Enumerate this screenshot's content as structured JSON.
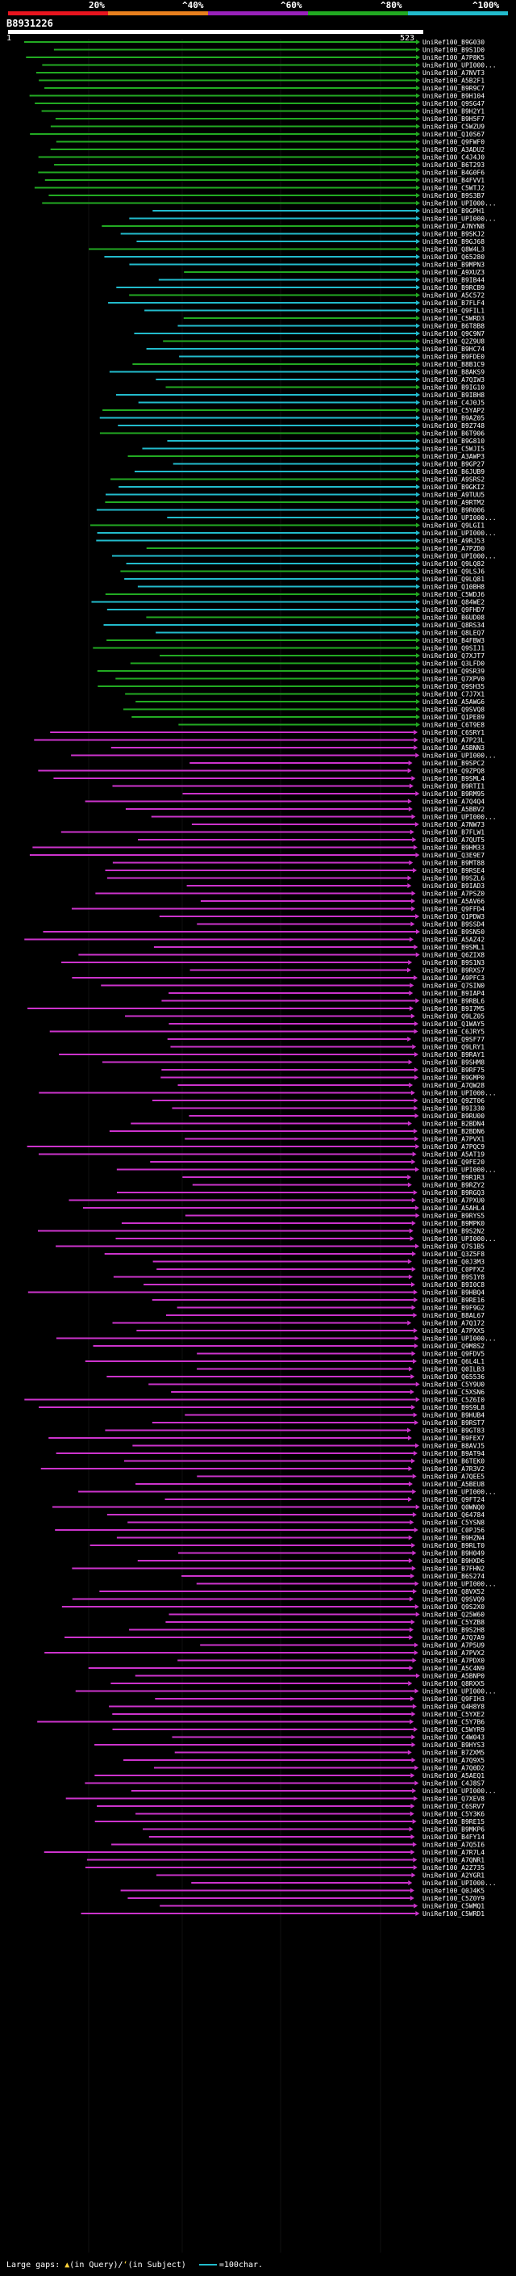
{
  "header": {
    "query_id": "B8931226",
    "query_start": "1",
    "query_end": "523",
    "scale_labels": [
      "20%",
      "^40%",
      "^60%",
      "^80%",
      "^100%"
    ],
    "scale_colors": [
      "#e8141e",
      "#e8801e",
      "#9922bb",
      "#22aa22",
      "#22bbcc"
    ]
  },
  "colors": {
    "magenta": "#cc33cc",
    "green": "#22aa22",
    "cyan": "#22bbcc",
    "background": "#000000",
    "grid": "#111111"
  },
  "footer": {
    "large_gaps_label": "Large gaps:",
    "in_query": "(in Query)",
    "separator": "/",
    "in_subject": "(in Subject)",
    "scale_label": "=100char."
  },
  "hit_labels": [
    "UniRef100_B9G030",
    "UniRef100_B9S1D0",
    "UniRef100_A7P8K5",
    "UniRef100_UPI000...",
    "UniRef100_A7NVT3",
    "UniRef100_A5B2F1",
    "UniRef100_B9R9C7",
    "UniRef100_B9H104",
    "UniRef100_Q9SG47",
    "UniRef100_B9H2Y1",
    "UniRef100_B9H5F7",
    "UniRef100_C5WZU9",
    "UniRef100_Q10S67",
    "UniRef100_Q9FWF0",
    "UniRef100_A3ADU2",
    "UniRef100_C4J4J0",
    "UniRef100_B6T293",
    "UniRef100_B4G0F6",
    "UniRef100_B4FVV1",
    "UniRef100_C5WTJ2",
    "UniRef100_B9S3B7",
    "UniRef100_UPI000...",
    "UniRef100_B9GPH1",
    "UniRef100_UPI000...",
    "UniRef100_A7NYN8",
    "UniRef100_B9SKJ2",
    "UniRef100_B9GJ68",
    "UniRef100_Q8W4L3",
    "UniRef100_Q65280",
    "UniRef100_B9MPN3",
    "UniRef100_A9XUZ3",
    "UniRef100_B9IB44",
    "UniRef100_B9RCB9",
    "UniRef100_A5C572",
    "UniRef100_B7FLF4",
    "UniRef100_Q9FIL1",
    "UniRef100_C5WRD3",
    "UniRef100_B6T8B8",
    "UniRef100_Q9C9N7",
    "UniRef100_Q2Z9U8",
    "UniRef100_B9HC74",
    "UniRef100_B9FDE0",
    "UniRef100_B8B1C9",
    "UniRef100_B8AKS9",
    "UniRef100_A7QIW3",
    "UniRef100_B9IG10",
    "UniRef100_B9IBH8",
    "UniRef100_C4J0J5",
    "UniRef100_C5YAP2",
    "UniRef100_B9AZ05",
    "UniRef100_B9Z748",
    "UniRef100_B6T906",
    "UniRef100_B9G810",
    "UniRef100_C5WJI5",
    "UniRef100_A3AWP3",
    "UniRef100_B9GP27",
    "UniRef100_B6JUB9",
    "UniRef100_A9SRS2",
    "UniRef100_B9GKI2",
    "UniRef100_A9TUU5",
    "UniRef100_A9RTM2",
    "UniRef100_B9R006",
    "UniRef100_UPI000...",
    "UniRef100_Q9LGI1",
    "UniRef100_UPI000...",
    "UniRef100_A9RJ53",
    "UniRef100_A7PZD0",
    "UniRef100_UPI000...",
    "UniRef100_Q9LQ82",
    "UniRef100_Q9LSJ6",
    "UniRef100_Q9LQ81",
    "UniRef100_Q10BH8",
    "UniRef100_C5WDJ6",
    "UniRef100_Q84WE2",
    "UniRef100_Q9FHD7",
    "UniRef100_B6UD08",
    "UniRef100_Q8RS34",
    "UniRef100_Q8LEQ7",
    "UniRef100_B4FBW3",
    "UniRef100_Q9SIJ1",
    "UniRef100_Q7XJT7",
    "UniRef100_Q3LFD0",
    "UniRef100_Q9SR39",
    "UniRef100_Q7XPV0",
    "UniRef100_Q9SH35",
    "UniRef100_C7J7X1",
    "UniRef100_A5AWG6",
    "UniRef100_Q9SVQ8",
    "UniRef100_Q1PE89",
    "UniRef100_C6T9E8",
    "UniRef100_C6SRY1",
    "UniRef100_A7P23L",
    "UniRef100_A5BNN3",
    "UniRef100_UPI000...",
    "UniRef100_B9SPC2",
    "UniRef100_Q9ZPQ8",
    "UniRef100_B9SML4",
    "UniRef100_B9RTI1",
    "UniRef100_B9RM95",
    "UniRef100_A7Q4Q4",
    "UniRef100_A5BBV2",
    "UniRef100_UPI000...",
    "UniRef100_A7NW73",
    "UniRef100_B7FLW1",
    "UniRef100_A7QUT5",
    "UniRef100_B9HM33",
    "UniRef100_Q3E9E7",
    "UniRef100_B9MT88",
    "UniRef100_B9RSE4",
    "UniRef100_B9SZL6",
    "UniRef100_B9IAD3",
    "UniRef100_A7PSZ0",
    "UniRef100_A5AV66",
    "UniRef100_Q9FFD4",
    "UniRef100_Q1PDW3",
    "UniRef100_B9SSD4",
    "UniRef100_B9SN50",
    "UniRef100_A5AZ42",
    "UniRef100_B9SML1",
    "UniRef100_Q6ZIX8",
    "UniRef100_B9S1N3",
    "UniRef100_B9RXS7",
    "UniRef100_A9PFC3",
    "UniRef100_Q7SIN0",
    "UniRef100_B9IAP4",
    "UniRef100_B9RBL6",
    "UniRef100_B9I7M5",
    "UniRef100_Q9LZ05",
    "UniRef100_Q1WAY5",
    "UniRef100_C6JRY5",
    "UniRef100_Q9SF77",
    "UniRef100_Q9LRY1",
    "UniRef100_B9RAY1",
    "UniRef100_B9SHM8",
    "UniRef100_B9RF75",
    "UniRef100_B9GMP0",
    "UniRef100_A7QW28",
    "UniRef100_UPI000...",
    "UniRef100_Q9ZT06",
    "UniRef100_B9I330",
    "UniRef100_B9RU00",
    "UniRef100_B2BDN4",
    "UniRef100_B2BDN6",
    "UniRef100_A7PVX1",
    "UniRef100_A7PQC9",
    "UniRef100_A5AT19",
    "UniRef100_Q9FE20",
    "UniRef100_UPI000...",
    "UniRef100_B9R1R3",
    "UniRef100_B9RZY2",
    "UniRef100_B9RGQ3",
    "UniRef100_A7PXU0",
    "UniRef100_A5AHL4",
    "UniRef100_B9RYS5",
    "UniRef100_B9MPK0",
    "UniRef100_B9S2N2",
    "UniRef100_UPI000...",
    "UniRef100_Q7S1B5",
    "UniRef100_Q3Z5F8",
    "UniRef100_Q0J3M3",
    "UniRef100_C0PFX2",
    "UniRef100_B9S1Y8",
    "UniRef100_B9I0C8",
    "UniRef100_B9HBQ4",
    "UniRef100_B9RE16",
    "UniRef100_B9F9G2",
    "UniRef100_B8AL67",
    "UniRef100_A7Q172",
    "UniRef100_A7PXX5",
    "UniRef100_UPI000...",
    "UniRef100_Q9M8S2",
    "UniRef100_Q9FDV5",
    "UniRef100_Q6L4L1",
    "UniRef100_Q0ILB3",
    "UniRef100_Q65536",
    "UniRef100_C5Y9U0",
    "UniRef100_C5XSN6",
    "UniRef100_C5Z6I0",
    "UniRef100_B9S9L8",
    "UniRef100_B9HUB4",
    "UniRef100_B9RST7",
    "UniRef100_B9GT83",
    "UniRef100_B9FEX7",
    "UniRef100_B8AVJ5",
    "UniRef100_B9AT94",
    "UniRef100_B6TEK0",
    "UniRef100_A7R3V2",
    "UniRef100_A7QEE5",
    "UniRef100_A5BEU8",
    "UniRef100_UPI000...",
    "UniRef100_Q9FT24",
    "UniRef100_Q0WNQ0",
    "UniRef100_Q64784",
    "UniRef100_C5YSN8",
    "UniRef100_C0PJ56",
    "UniRef100_B9HZN4",
    "UniRef100_B9RLT0",
    "UniRef100_B9H049",
    "UniRef100_B9HXD6",
    "UniRef100_B7FHN2",
    "UniRef100_B6S274",
    "UniRef100_UPI000...",
    "UniRef100_Q8VX52",
    "UniRef100_Q9SVQ9",
    "UniRef100_Q9S2X0",
    "UniRef100_Q25W60",
    "UniRef100_C5YZB8",
    "UniRef100_B9S2H8",
    "UniRef100_A7Q7A9",
    "UniRef100_A7P5U9",
    "UniRef100_A7PVX2",
    "UniRef100_A7PDX0",
    "UniRef100_A5C4N9",
    "UniRef100_A5BNP0",
    "UniRef100_Q8RXX5",
    "UniRef100_UPI000...",
    "UniRef100_Q9FIH3",
    "UniRef100_Q4H8Y8",
    "UniRef100_C5YXE2",
    "UniRef100_C5Y7B6",
    "UniRef100_C5WYR9",
    "UniRef100_C4W043",
    "UniRef100_B9HYS3",
    "UniRef100_B7ZXM5",
    "UniRef100_A7Q9X5",
    "UniRef100_A7Q0D2",
    "UniRef100_A5AEQ1",
    "UniRef100_C4J8S7",
    "UniRef100_UPI000...",
    "UniRef100_Q7XEV8",
    "UniRef100_C6SRV7",
    "UniRef100_C5Y3K6",
    "UniRef100_B9RE15",
    "UniRef100_B9MKP6",
    "UniRef100_B4FY14",
    "UniRef100_A7Q5I6",
    "UniRef100_A7R7L4",
    "UniRef100_A7QNR1",
    "UniRef100_A2Z735",
    "UniRef100_A2YGR1",
    "UniRef100_UPI000...",
    "UniRef100_Q0J4K5",
    "UniRef100_C5Z0Y9",
    "UniRef100_C5WMQ1",
    "UniRef100_C5WRD1"
  ]
}
